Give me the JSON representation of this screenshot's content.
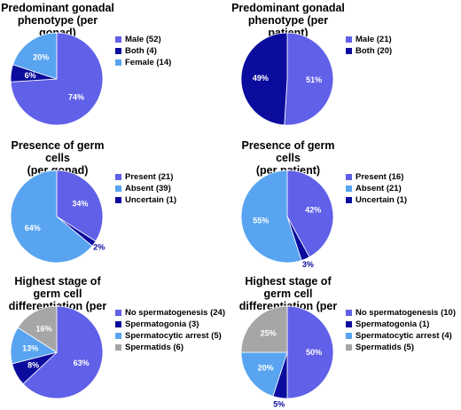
{
  "colors": {
    "periwinkle": "#6060E8",
    "navy": "#0B0B9E",
    "sky": "#58A4F0",
    "grey": "#A6A6A6"
  },
  "chart_data": [
    {
      "type": "pie",
      "title": "Predominant gonadal phenotype (per gonad)",
      "title_lines": [
        "Predominant gonadal",
        "phenotype (per gonad)"
      ],
      "legend": [
        "Male (52)",
        "Both (4)",
        "Female (14)"
      ],
      "slices": [
        {
          "label": "Male",
          "count": 52,
          "percent": 74,
          "percent_label": "74%",
          "color": "periwinkle"
        },
        {
          "label": "Both",
          "count": 4,
          "percent": 6,
          "percent_label": "6%",
          "color": "navy"
        },
        {
          "label": "Female",
          "count": 14,
          "percent": 20,
          "percent_label": "20%",
          "color": "sky"
        }
      ]
    },
    {
      "type": "pie",
      "title": "Predominant gonadal phenotype (per patient)",
      "title_lines": [
        "Predominant gonadal",
        "phenotype (per patient)"
      ],
      "legend": [
        "Male (21)",
        "Both (20)"
      ],
      "slices": [
        {
          "label": "Male",
          "count": 21,
          "percent": 51,
          "percent_label": "51%",
          "color": "periwinkle"
        },
        {
          "label": "Both",
          "count": 20,
          "percent": 49,
          "percent_label": "49%",
          "color": "navy"
        }
      ]
    },
    {
      "type": "pie",
      "title": "Presence of germ cells (per gonad)",
      "title_lines": [
        "Presence of germ cells",
        "(per gonad)"
      ],
      "legend": [
        "Present (21)",
        "Absent (39)",
        "Uncertain (1)"
      ],
      "slices": [
        {
          "label": "Present",
          "count": 21,
          "percent": 34,
          "percent_label": "34%",
          "color": "periwinkle"
        },
        {
          "label": "Uncertain",
          "count": 1,
          "percent": 2,
          "percent_label": "2%",
          "color": "navy"
        },
        {
          "label": "Absent",
          "count": 39,
          "percent": 64,
          "percent_label": "64%",
          "color": "sky"
        }
      ]
    },
    {
      "type": "pie",
      "title": "Presence of germ cells (per patient)",
      "title_lines": [
        "Presence of germ cells",
        "(per patient)"
      ],
      "legend": [
        "Present (16)",
        "Absent (21)",
        "Uncertain (1)"
      ],
      "slices": [
        {
          "label": "Present",
          "count": 16,
          "percent": 42,
          "percent_label": "42%",
          "color": "periwinkle"
        },
        {
          "label": "Uncertain",
          "count": 1,
          "percent": 3,
          "percent_label": "3%",
          "color": "navy"
        },
        {
          "label": "Absent",
          "count": 21,
          "percent": 55,
          "percent_label": "55%",
          "color": "sky"
        }
      ]
    },
    {
      "type": "pie",
      "title": "Highest stage of germ cell differentiation (per gonad)",
      "title_lines": [
        "Highest stage of germ cell",
        "differentiation (per gonad)"
      ],
      "legend": [
        "No spermatogenesis (24)",
        "Spermatogonia (3)",
        "Spermatocytic arrest (5)",
        "Spermatids (6)"
      ],
      "slices": [
        {
          "label": "No spermatogenesis",
          "count": 24,
          "percent": 63,
          "percent_label": "63%",
          "color": "periwinkle"
        },
        {
          "label": "Spermatogonia",
          "count": 3,
          "percent": 8,
          "percent_label": "8%",
          "color": "navy"
        },
        {
          "label": "Spermatocytic arrest",
          "count": 5,
          "percent": 13,
          "percent_label": "13%",
          "color": "sky"
        },
        {
          "label": "Spermatids",
          "count": 6,
          "percent": 16,
          "percent_label": "16%",
          "color": "grey"
        }
      ]
    },
    {
      "type": "pie",
      "title": "Highest stage of germ cell differentiation (per patient)",
      "title_lines": [
        "Highest stage of germ cell",
        "differentiation (per patient)"
      ],
      "legend": [
        "No spermatogenesis (10)",
        "Spermatogonia (1)",
        "Spermatocytic arrest (4)",
        "Spermatids (5)"
      ],
      "slices": [
        {
          "label": "No spermatogenesis",
          "count": 10,
          "percent": 50,
          "percent_label": "50%",
          "color": "periwinkle"
        },
        {
          "label": "Spermatogonia",
          "count": 1,
          "percent": 5,
          "percent_label": "5%",
          "color": "navy"
        },
        {
          "label": "Spermatocytic arrest",
          "count": 4,
          "percent": 20,
          "percent_label": "20%",
          "color": "sky"
        },
        {
          "label": "Spermatids",
          "count": 5,
          "percent": 25,
          "percent_label": "25%",
          "color": "grey"
        }
      ]
    }
  ]
}
